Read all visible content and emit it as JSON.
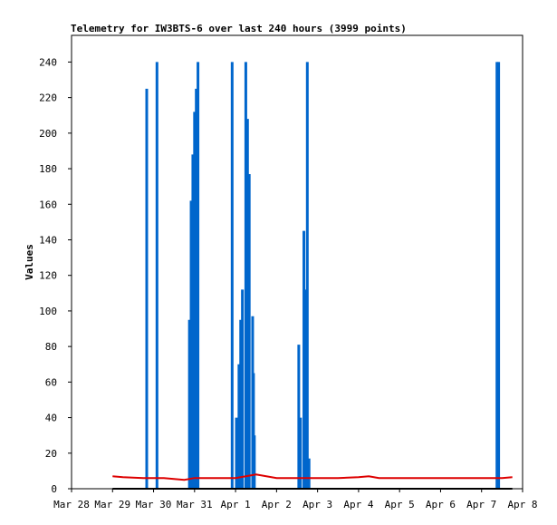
{
  "chart_data": {
    "type": "line",
    "title": "Telemetry for IW3BTS-6 over last 240 hours (3999 points)",
    "ylabel": "Values",
    "xlabel": "",
    "xlim": [
      "2024-03-28",
      "2024-04-08"
    ],
    "ylim": [
      0,
      255
    ],
    "x_tick_labels": [
      "Mar 28",
      "Mar 29",
      "Mar 30",
      "Mar 31",
      "Apr 1",
      "Apr 2",
      "Apr 3",
      "Apr 4",
      "Apr 5",
      "Apr 6",
      "Apr 7",
      "Apr 8"
    ],
    "x_tick_dates": [
      "2024-03-28",
      "2024-03-29",
      "2024-03-30",
      "2024-03-31",
      "2024-04-01",
      "2024-04-02",
      "2024-04-03",
      "2024-04-04",
      "2024-04-05",
      "2024-04-06",
      "2024-04-07",
      "2024-04-08"
    ],
    "y_ticks": [
      0,
      20,
      40,
      60,
      80,
      100,
      120,
      140,
      160,
      180,
      200,
      220,
      240
    ],
    "grid": false,
    "legend": "none",
    "series": [
      {
        "color": "#0066cc",
        "style": "impulse",
        "points": [
          {
            "x": "2024-03-29 20:00",
            "y": 225
          },
          {
            "x": "2024-03-30 02:00",
            "y": 240
          },
          {
            "x": "2024-03-30 21:00",
            "y": 95
          },
          {
            "x": "2024-03-30 22:00",
            "y": 162
          },
          {
            "x": "2024-03-30 23:00",
            "y": 188
          },
          {
            "x": "2024-03-31 00:00",
            "y": 212
          },
          {
            "x": "2024-03-31 01:00",
            "y": 225
          },
          {
            "x": "2024-03-31 02:00",
            "y": 240
          },
          {
            "x": "2024-03-31 22:00",
            "y": 240
          },
          {
            "x": "2024-04-01 00:30",
            "y": 40
          },
          {
            "x": "2024-04-01 02:00",
            "y": 70
          },
          {
            "x": "2024-04-01 03:00",
            "y": 95
          },
          {
            "x": "2024-04-01 04:00",
            "y": 112
          },
          {
            "x": "2024-04-01 06:00",
            "y": 240
          },
          {
            "x": "2024-04-01 07:00",
            "y": 208
          },
          {
            "x": "2024-04-01 08:00",
            "y": 177
          },
          {
            "x": "2024-04-01 10:00",
            "y": 97
          },
          {
            "x": "2024-04-01 10:30",
            "y": 65
          },
          {
            "x": "2024-04-01 11:00",
            "y": 30
          },
          {
            "x": "2024-04-02 13:00",
            "y": 81
          },
          {
            "x": "2024-04-02 14:00",
            "y": 40
          },
          {
            "x": "2024-04-02 16:00",
            "y": 145
          },
          {
            "x": "2024-04-02 17:00",
            "y": 112
          },
          {
            "x": "2024-04-02 18:00",
            "y": 240
          },
          {
            "x": "2024-04-02 19:00",
            "y": 17
          },
          {
            "x": "2024-04-07 09:00",
            "y": 240
          },
          {
            "x": "2024-04-07 10:00",
            "y": 240
          }
        ]
      },
      {
        "color": "#dd0000",
        "style": "line",
        "points": [
          {
            "x": "2024-03-29 00:00",
            "y": 7
          },
          {
            "x": "2024-03-29 06:00",
            "y": 6.5
          },
          {
            "x": "2024-03-29 18:00",
            "y": 6
          },
          {
            "x": "2024-03-30 06:00",
            "y": 6
          },
          {
            "x": "2024-03-30 12:00",
            "y": 5.5
          },
          {
            "x": "2024-03-30 18:00",
            "y": 5
          },
          {
            "x": "2024-03-31 00:00",
            "y": 6
          },
          {
            "x": "2024-03-31 12:00",
            "y": 6
          },
          {
            "x": "2024-04-01 00:00",
            "y": 6
          },
          {
            "x": "2024-04-01 12:00",
            "y": 8
          },
          {
            "x": "2024-04-02 00:00",
            "y": 6
          },
          {
            "x": "2024-04-02 12:00",
            "y": 6
          },
          {
            "x": "2024-04-03 12:00",
            "y": 6
          },
          {
            "x": "2024-04-04 00:00",
            "y": 6.5
          },
          {
            "x": "2024-04-04 06:00",
            "y": 7
          },
          {
            "x": "2024-04-04 12:00",
            "y": 6
          },
          {
            "x": "2024-04-05 12:00",
            "y": 6
          },
          {
            "x": "2024-04-06 12:00",
            "y": 6
          },
          {
            "x": "2024-04-07 12:00",
            "y": 6
          },
          {
            "x": "2024-04-07 18:00",
            "y": 6.5
          }
        ]
      },
      {
        "color": "#000000",
        "style": "line",
        "points": [
          {
            "x": "2024-03-29 00:00",
            "y": 0
          },
          {
            "x": "2024-04-07 18:00",
            "y": 0
          }
        ]
      }
    ]
  }
}
